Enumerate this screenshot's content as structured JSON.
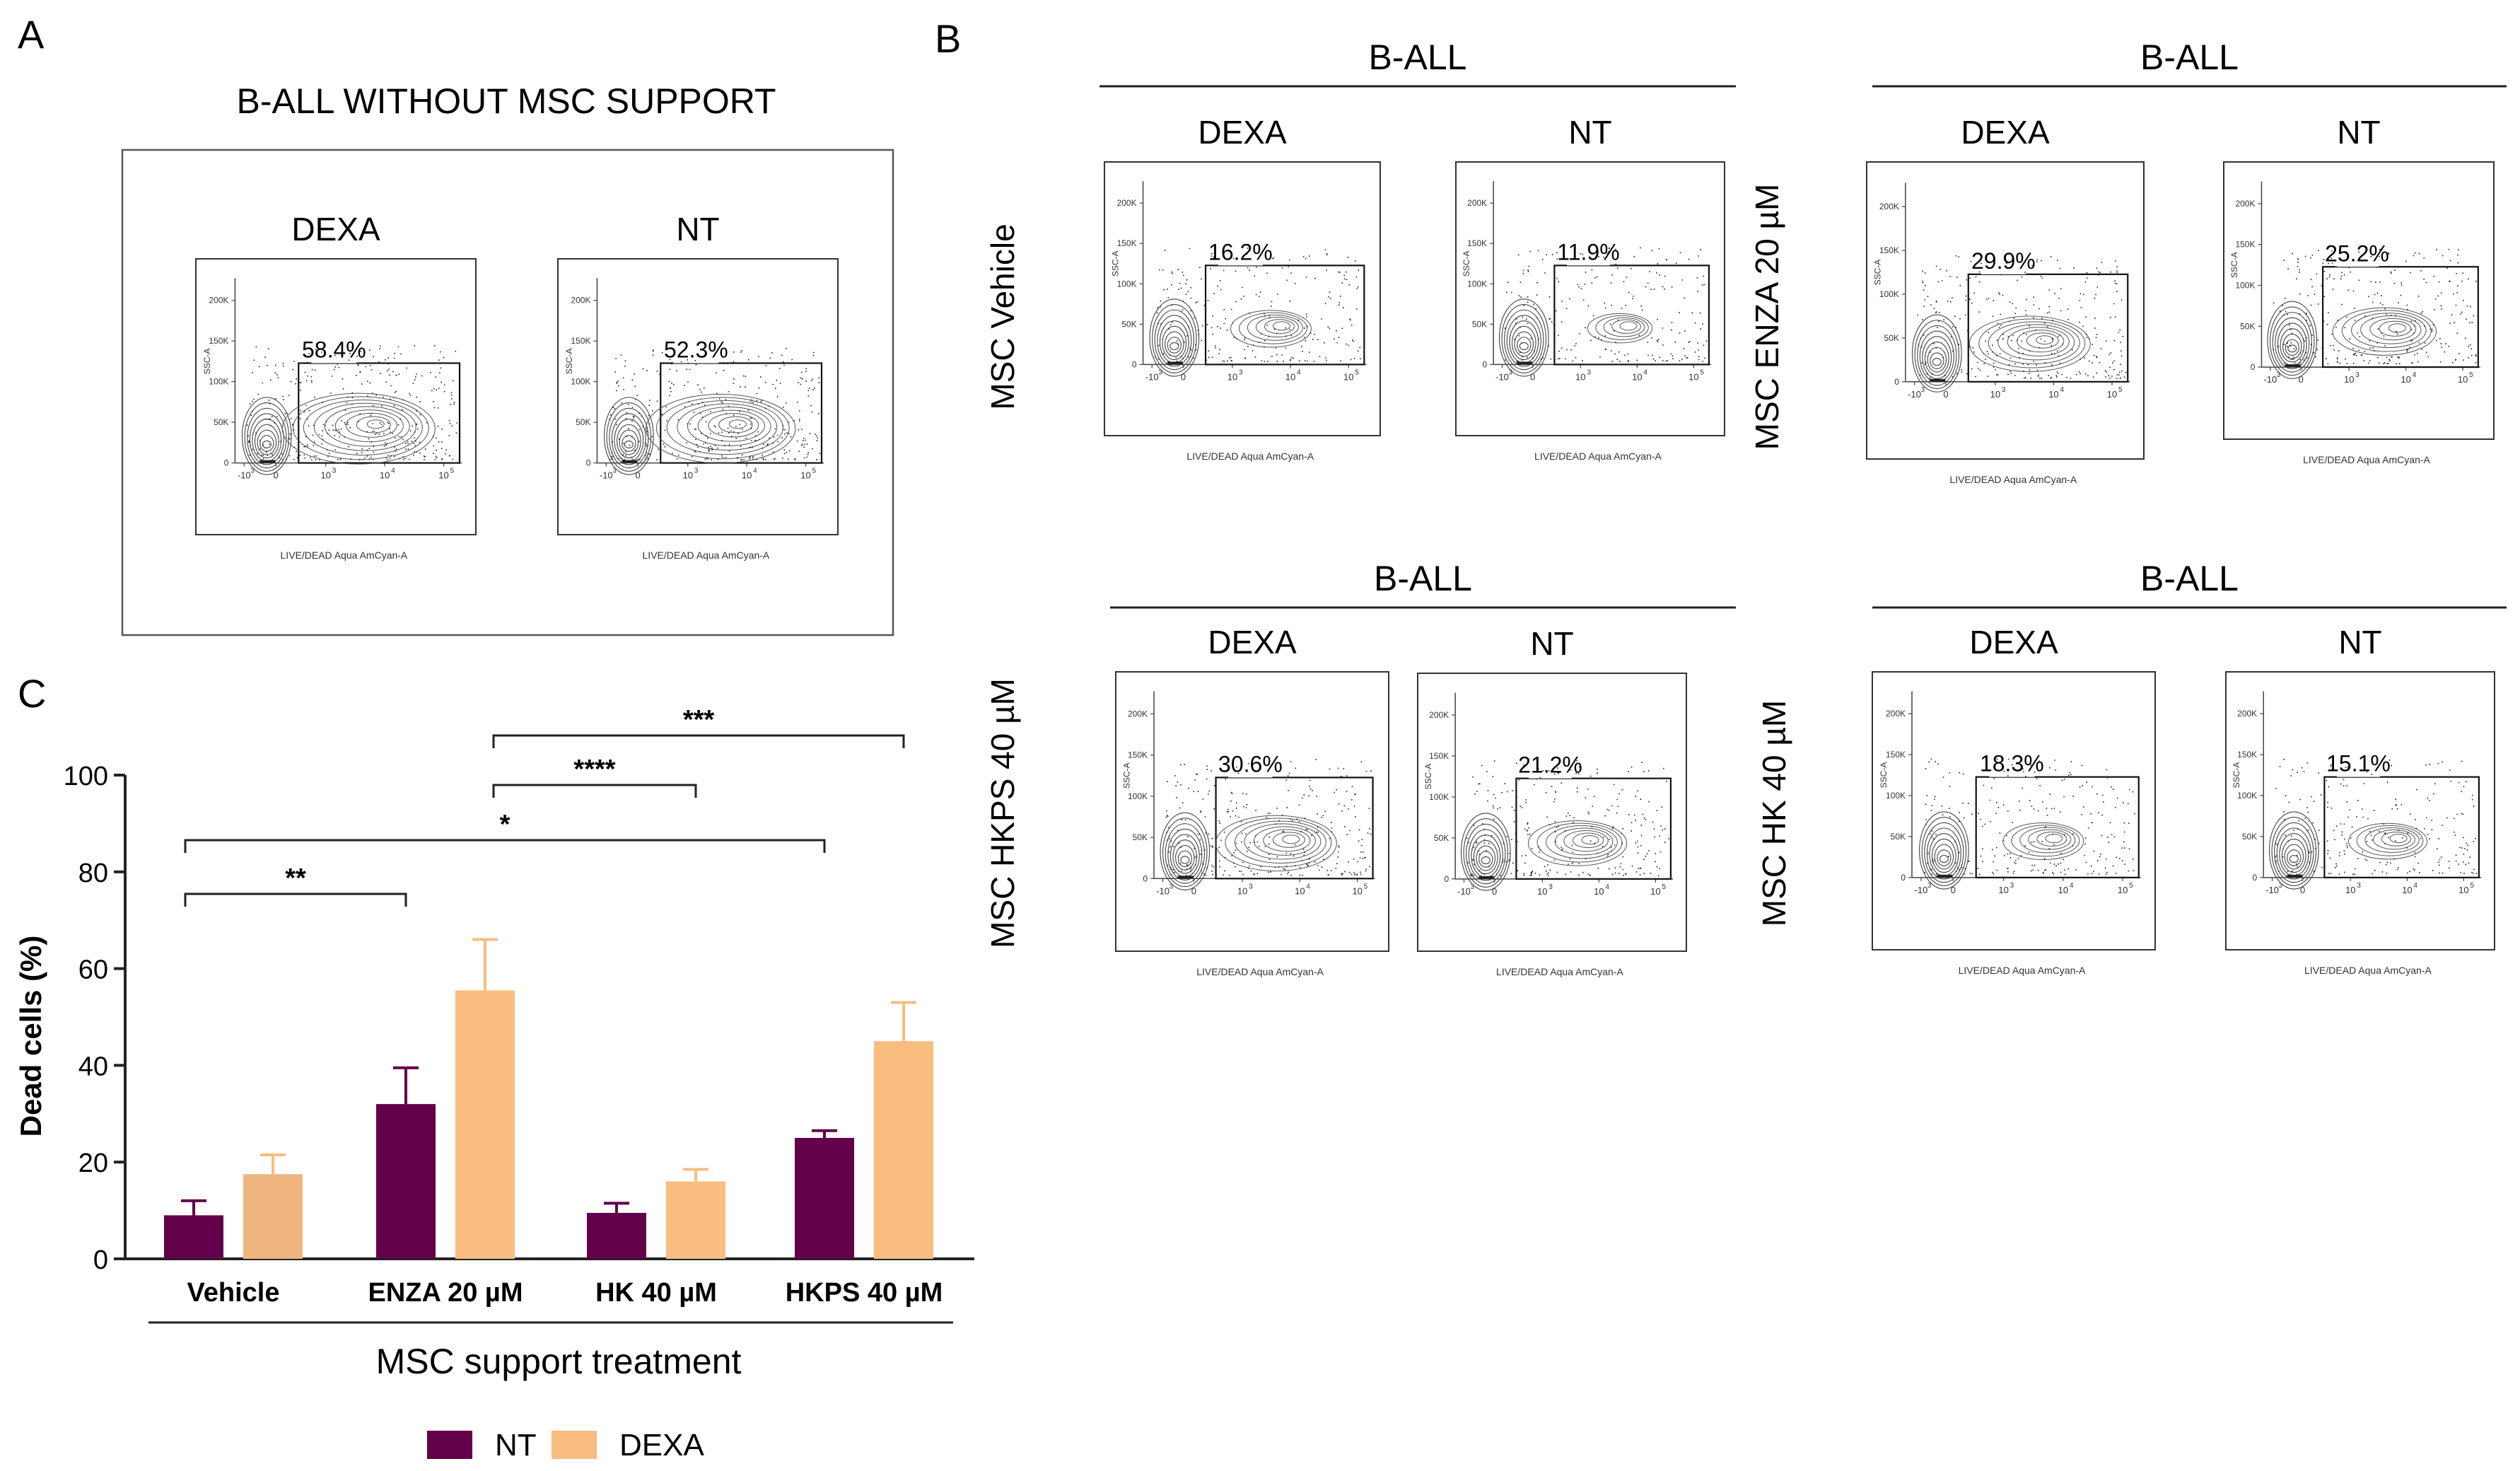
{
  "panel_letters": {
    "a": "A",
    "b": "B",
    "c": "C"
  },
  "panel_a": {
    "title": "B-ALL WITHOUT MSC SUPPORT",
    "plots": [
      {
        "label": "DEXA",
        "gate_pct": "58.4%",
        "density": 1.0
      },
      {
        "label": "NT",
        "gate_pct": "52.3%",
        "density": 0.95
      }
    ]
  },
  "flow_axes": {
    "x_label": "LIVE/DEAD Aqua AmCyan-A",
    "y_label": "SSC-A",
    "y_ticks": [
      "200K",
      "150K",
      "100K",
      "50K",
      "0"
    ],
    "x_ticks": [
      "-10",
      "0",
      "10",
      "10",
      "10"
    ],
    "x_tick_sup": [
      "3",
      "",
      "3",
      "4",
      "5"
    ]
  },
  "panel_b": {
    "groups": [
      {
        "header": "B-ALL",
        "row_label": "MSC  Vehicle",
        "plots": [
          {
            "label": "DEXA",
            "gate_pct": "16.2%",
            "density": 0.5
          },
          {
            "label": "NT",
            "gate_pct": "11.9%",
            "density": 0.4
          }
        ]
      },
      {
        "header": "B-ALL",
        "row_label": "MSC ENZA  20 µM",
        "plots": [
          {
            "label": "DEXA",
            "gate_pct": "29.9%",
            "density": 0.75
          },
          {
            "label": "NT",
            "gate_pct": "25.2%",
            "density": 0.7
          }
        ]
      },
      {
        "header": "B-ALL",
        "row_label": "MSC  HKPS 40 µM",
        "plots": [
          {
            "label": "DEXA",
            "gate_pct": "30.6%",
            "density": 0.75
          },
          {
            "label": "NT",
            "gate_pct": "21.2%",
            "density": 0.6
          }
        ]
      },
      {
        "header": "B-ALL",
        "row_label": "MSC  HK 40 µM",
        "plots": [
          {
            "label": "DEXA",
            "gate_pct": "18.3%",
            "density": 0.5
          },
          {
            "label": "NT",
            "gate_pct": "15.1%",
            "density": 0.45
          }
        ]
      }
    ]
  },
  "chart_data": {
    "type": "bar",
    "title": "",
    "ylabel": "Dead cells (%)",
    "xlabel": "MSC support treatment",
    "ylim": [
      0,
      100
    ],
    "y_ticks": [
      0,
      20,
      40,
      60,
      80,
      100
    ],
    "categories": [
      "Vehicle",
      "ENZA 20 µM",
      "HK 40 µM",
      "HKPS 40 µM"
    ],
    "series": [
      {
        "name": "NT",
        "color": "#62004a",
        "values": [
          9,
          32,
          9.5,
          25
        ],
        "errors": [
          3,
          7.5,
          2,
          1.5
        ]
      },
      {
        "name": "DEXA",
        "color": "#f8bd7f",
        "values": [
          17.5,
          55.5,
          16,
          45
        ],
        "errors": [
          4,
          10.5,
          2.5,
          8
        ]
      }
    ],
    "significance": [
      {
        "label": "***",
        "from": 1,
        "to": 3,
        "series_from": "DEXA",
        "series_to": "DEXA"
      },
      {
        "label": "****",
        "from": 1,
        "to": 2,
        "series_from": "DEXA",
        "series_to": "DEXA"
      },
      {
        "label": "*",
        "from": 0,
        "to": 3,
        "series_from": "NT",
        "series_to": "NT"
      },
      {
        "label": "**",
        "from": 0,
        "to": 1,
        "series_from": "NT",
        "series_to": "NT"
      }
    ]
  }
}
